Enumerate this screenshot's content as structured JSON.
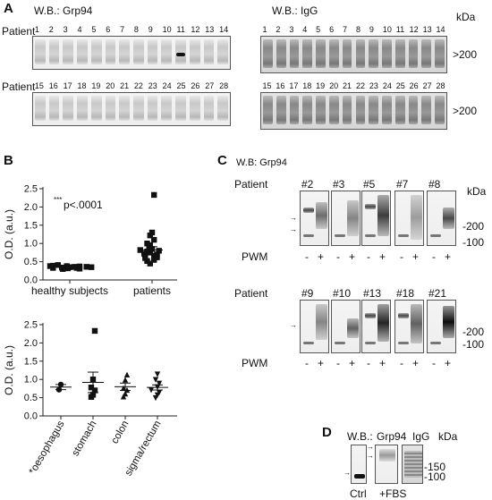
{
  "panel_a": {
    "letter": "A",
    "title_left": "W.B.: Grp94",
    "title_right": "W.B.: IgG",
    "kda": "kDa",
    "patient_label": "Patient",
    "row1_lanes": [
      "1",
      "2",
      "3",
      "4",
      "5",
      "6",
      "7",
      "8",
      "9",
      "10",
      "11",
      "12",
      "13",
      "14"
    ],
    "row2_lanes": [
      "15",
      "16",
      "17",
      "18",
      "19",
      "20",
      "21",
      "22",
      "23",
      "24",
      "25",
      "26",
      "27",
      "28"
    ],
    "size_marker": ">200"
  },
  "panel_b": {
    "letter": "B",
    "pvalue_prefix": "***",
    "pvalue": "p<.0001",
    "top_chart": {
      "type": "scatter",
      "ylabel": "O.D. (a.u.)",
      "ylim": [
        0,
        2.5
      ],
      "yticks": [
        "0.0",
        "0.5",
        "1.0",
        "1.5",
        "2.0",
        "2.5"
      ],
      "categories": [
        "healthy subjects",
        "patients"
      ],
      "series": [
        {
          "values": [
            0.32,
            0.35,
            0.38,
            0.3,
            0.36,
            0.33,
            0.41,
            0.37,
            0.34,
            0.39,
            0.31,
            0.36,
            0.33,
            0.38,
            0.35
          ],
          "mean": 0.35,
          "sem": 0.02
        },
        {
          "values": [
            0.45,
            0.52,
            0.55,
            0.6,
            0.62,
            0.65,
            0.68,
            0.7,
            0.72,
            0.75,
            0.78,
            0.8,
            0.82,
            0.85,
            0.9,
            0.95,
            1.0,
            1.1,
            1.22,
            1.3,
            2.33
          ],
          "mean": 0.82,
          "sem": 0.09
        }
      ]
    },
    "bottom_chart": {
      "type": "scatter",
      "ylabel": "O.D. (a.u.)",
      "ylim": [
        0,
        2.5
      ],
      "yticks": [
        "0.0",
        "0.5",
        "1.0",
        "1.5",
        "2.0",
        "2.5"
      ],
      "categories": [
        "*oesophagus",
        "stomach",
        "colon",
        "sigma/rectum"
      ],
      "series": [
        {
          "marker": "circle",
          "values": [
            0.72,
            0.86
          ],
          "mean": 0.79,
          "sem": 0.07
        },
        {
          "marker": "square",
          "values": [
            0.52,
            0.58,
            0.7,
            0.78,
            1.0,
            2.33
          ],
          "mean": 0.92,
          "sem": 0.28
        },
        {
          "marker": "triangle",
          "values": [
            0.52,
            0.6,
            0.7,
            0.75,
            0.98,
            1.12
          ],
          "mean": 0.8,
          "sem": 0.1
        },
        {
          "marker": "triangle-down",
          "values": [
            0.5,
            0.58,
            0.65,
            0.72,
            0.8,
            0.9,
            1.0,
            1.15
          ],
          "mean": 0.78,
          "sem": 0.07
        }
      ]
    }
  },
  "panel_c": {
    "letter": "C",
    "title": "W.B: Grp94",
    "patient_label": "Patient",
    "kda": "kDa",
    "row1_ids": [
      "#2",
      "#3",
      "#5",
      "#7",
      "#8"
    ],
    "row2_ids": [
      "#9",
      "#10",
      "#13",
      "#18",
      "#21"
    ],
    "marker_high": "-200",
    "marker_low": "-100",
    "pwm_label": "PWM",
    "minus": "-",
    "plus": "+"
  },
  "panel_d": {
    "letter": "D",
    "wb_label": "W.B.:",
    "grp94": "Grp94",
    "igg": "IgG",
    "kda": "kDa",
    "marker_150": "-150",
    "marker_100": "-100",
    "ctrl": "Ctrl",
    "fbs": "+FBS"
  }
}
